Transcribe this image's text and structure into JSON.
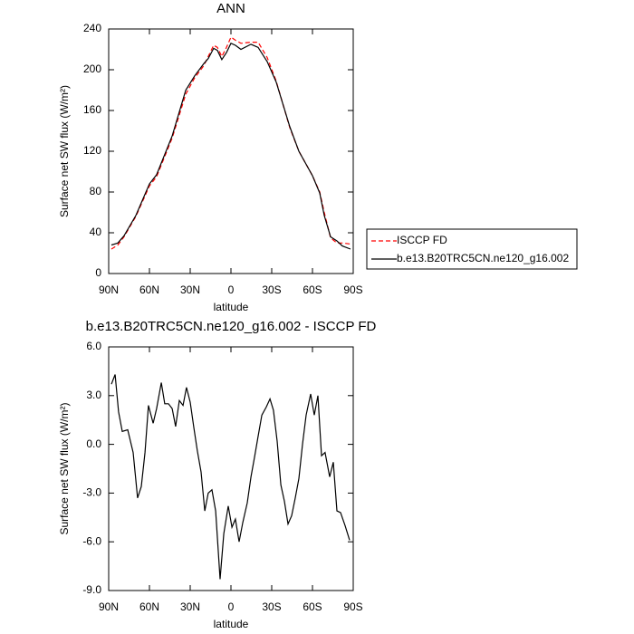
{
  "chart_data": [
    {
      "type": "line",
      "title": "ANN",
      "x_label": "latitude",
      "y_label": "Surface net SW flux (W/m²)",
      "x": [
        88,
        83.3,
        78.7,
        70,
        60,
        54.7,
        43.3,
        33.3,
        26.7,
        20,
        16.7,
        12.7,
        10,
        6.7,
        3.3,
        0,
        -3.3,
        -7.3,
        -14.7,
        -20,
        -26.7,
        -33.3,
        -43.3,
        -50,
        -60,
        -65.3,
        -68.7,
        -73.3,
        -78,
        -82,
        -88
      ],
      "series": [
        {
          "name": "ISCCP FD",
          "color": "#ff0000",
          "dashed": true,
          "values": [
            24,
            28,
            36,
            56,
            86,
            95,
            133,
            176,
            192,
            204,
            213,
            224,
            222,
            213,
            222,
            232,
            229,
            226,
            227,
            227,
            212,
            189,
            143,
            120,
            96,
            80,
            60,
            35,
            30,
            30,
            29
          ]
        },
        {
          "name": "b.e13.B20TRC5CN.ne120_g16.002",
          "color": "#000000",
          "dashed": false,
          "values": [
            28,
            30,
            37,
            57,
            88,
            97,
            135,
            180,
            194,
            206,
            211,
            221,
            219,
            210,
            217,
            226,
            224,
            220,
            225,
            222,
            208,
            188,
            144,
            120,
            96,
            79,
            57,
            36,
            32,
            27,
            24
          ]
        }
      ],
      "xlim": [
        90,
        -90
      ],
      "xticks": [
        {
          "value": 90,
          "label": "90N"
        },
        {
          "value": 60,
          "label": "60N"
        },
        {
          "value": 30,
          "label": "30N"
        },
        0,
        {
          "value": -30,
          "label": "30S"
        },
        {
          "value": -60,
          "label": "60S"
        },
        {
          "value": -90,
          "label": "90S"
        }
      ],
      "ylim": [
        0,
        240
      ],
      "yticks": [
        0,
        40,
        80,
        120,
        160,
        200,
        240
      ],
      "legend": "right"
    },
    {
      "type": "line",
      "title": "b.e13.B20TRC5CN.ne120_g16.002 - ISCCP FD",
      "x_label": "latitude",
      "y_label": "Surface net SW flux (W/m²)",
      "x": [
        88,
        85.3,
        82.7,
        80,
        76,
        72,
        68.7,
        66,
        63.3,
        60.7,
        57.3,
        54.7,
        51.3,
        48.7,
        46,
        43.3,
        40.7,
        38,
        35.3,
        32.7,
        30,
        27.3,
        24.7,
        22,
        19.3,
        16.7,
        14,
        11.3,
        8,
        5.3,
        2,
        -0.7,
        -3.3,
        -6,
        -8.7,
        -12,
        -14.7,
        -17.3,
        -20,
        -22.7,
        -26,
        -28.7,
        -31.3,
        -34,
        -36.7,
        -39.3,
        -42,
        -44.7,
        -47.3,
        -50,
        -52.7,
        -55.3,
        -58.7,
        -61.3,
        -64,
        -66.7,
        -69.3,
        -72.7,
        -75.3,
        -78,
        -80.7,
        -84,
        -87.3
      ],
      "series": [
        {
          "name": null,
          "color": "#000000",
          "dashed": false,
          "values": [
            3.7,
            4.3,
            2.0,
            0.8,
            0.9,
            -0.5,
            -3.3,
            -2.6,
            -0.5,
            2.4,
            1.3,
            2.2,
            3.8,
            2.5,
            2.5,
            2.2,
            1.1,
            2.7,
            2.4,
            3.5,
            2.6,
            1.0,
            -0.4,
            -1.7,
            -4.1,
            -3.0,
            -2.8,
            -4.1,
            -8.3,
            -5.5,
            -3.8,
            -5.1,
            -4.6,
            -6.0,
            -4.8,
            -3.6,
            -2.0,
            -0.8,
            0.5,
            1.8,
            2.3,
            2.8,
            2.1,
            0.2,
            -2.5,
            -3.5,
            -4.9,
            -4.4,
            -3.3,
            -2.1,
            0.0,
            1.8,
            3.1,
            1.8,
            3.0,
            -0.7,
            -0.5,
            -2.0,
            -1.1,
            -4.1,
            -4.2,
            -5.0,
            -5.9
          ]
        }
      ],
      "xlim": [
        90,
        -90
      ],
      "xticks": [
        {
          "value": 90,
          "label": "90N"
        },
        {
          "value": 60,
          "label": "60N"
        },
        {
          "value": 30,
          "label": "30N"
        },
        0,
        {
          "value": -30,
          "label": "30S"
        },
        {
          "value": -60,
          "label": "60S"
        },
        {
          "value": -90,
          "label": "90S"
        }
      ],
      "ylim": [
        -9,
        6
      ],
      "yticks": [
        {
          "value": -9,
          "label": "-9.0"
        },
        {
          "value": -6,
          "label": "-6.0"
        },
        {
          "value": -3,
          "label": "-3.0"
        },
        {
          "value": 0,
          "label": "0.0"
        },
        {
          "value": 3,
          "label": "3.0"
        },
        {
          "value": 6,
          "label": "6.0"
        }
      ]
    }
  ]
}
